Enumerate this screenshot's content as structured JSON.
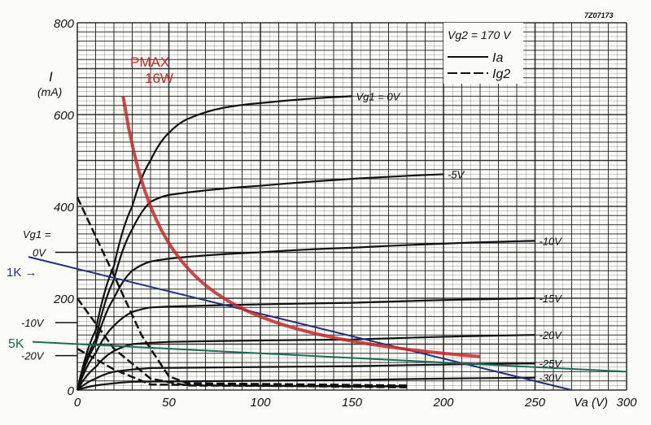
{
  "chart_data": {
    "type": "line",
    "title": "",
    "figure_code": "7Z07173",
    "xlabel": "Va (V)",
    "ylabel": "I (mA)",
    "ylabel_top": "I",
    "ylabel_unit": "(mA)",
    "xlabel_text": "Va (V)",
    "xlim": [
      0,
      300
    ],
    "ylim": [
      0,
      800
    ],
    "xticks": [
      0,
      50,
      100,
      150,
      200,
      250,
      300
    ],
    "yticks": [
      0,
      200,
      400,
      600,
      800
    ],
    "grid": true,
    "legend": {
      "placement": "top-right",
      "condition": "Vg2 = 170 V",
      "entries": [
        {
          "label": "Ia",
          "style": "solid"
        },
        {
          "label": "Ig2",
          "style": "dashed"
        }
      ]
    },
    "series": [
      {
        "name": "Vg1=0V",
        "label": "Vg1 = 0V",
        "points": [
          [
            0,
            0
          ],
          [
            10,
            130
          ],
          [
            20,
            270
          ],
          [
            30,
            400
          ],
          [
            40,
            500
          ],
          [
            50,
            560
          ],
          [
            60,
            590
          ],
          [
            80,
            615
          ],
          [
            100,
            625
          ],
          [
            150,
            640
          ]
        ]
      },
      {
        "name": "-5V",
        "label": "-5V",
        "points": [
          [
            0,
            0
          ],
          [
            10,
            110
          ],
          [
            20,
            240
          ],
          [
            30,
            350
          ],
          [
            40,
            410
          ],
          [
            50,
            425
          ],
          [
            100,
            445
          ],
          [
            200,
            470
          ]
        ]
      },
      {
        "name": "-10V",
        "label": "-10V",
        "points": [
          [
            0,
            0
          ],
          [
            10,
            100
          ],
          [
            20,
            200
          ],
          [
            30,
            260
          ],
          [
            40,
            280
          ],
          [
            60,
            290
          ],
          [
            100,
            300
          ],
          [
            150,
            310
          ],
          [
            250,
            325
          ]
        ]
      },
      {
        "name": "-15V",
        "label": "-15V",
        "points": [
          [
            0,
            0
          ],
          [
            10,
            80
          ],
          [
            20,
            140
          ],
          [
            30,
            170
          ],
          [
            40,
            180
          ],
          [
            60,
            183
          ],
          [
            150,
            190
          ],
          [
            250,
            200
          ]
        ]
      },
      {
        "name": "-20V",
        "label": "-20V",
        "points": [
          [
            0,
            0
          ],
          [
            10,
            50
          ],
          [
            20,
            85
          ],
          [
            30,
            100
          ],
          [
            50,
            105
          ],
          [
            150,
            110
          ],
          [
            250,
            120
          ]
        ]
      },
      {
        "name": "-25V",
        "label": "-25V",
        "points": [
          [
            0,
            0
          ],
          [
            10,
            25
          ],
          [
            20,
            40
          ],
          [
            40,
            48
          ],
          [
            150,
            52
          ],
          [
            250,
            58
          ]
        ]
      },
      {
        "name": "-30V",
        "label": "-30V",
        "points": [
          [
            0,
            0
          ],
          [
            10,
            10
          ],
          [
            30,
            18
          ],
          [
            150,
            22
          ],
          [
            250,
            27
          ]
        ]
      }
    ],
    "ig2_series": [
      {
        "name": "Ig2 Vg1=0V",
        "points": [
          [
            0,
            420
          ],
          [
            20,
            250
          ],
          [
            35,
            120
          ],
          [
            50,
            30
          ],
          [
            60,
            15
          ],
          [
            180,
            10
          ]
        ]
      },
      {
        "name": "Ig2 Vg1=-10V",
        "points": [
          [
            0,
            200
          ],
          [
            20,
            90
          ],
          [
            40,
            25
          ],
          [
            60,
            10
          ],
          [
            180,
            8
          ]
        ]
      },
      {
        "name": "Ig2 Vg1=-20V",
        "points": [
          [
            0,
            90
          ],
          [
            20,
            45
          ],
          [
            40,
            12
          ],
          [
            180,
            6
          ]
        ]
      }
    ],
    "annotations": {
      "pmax": {
        "label_line1": "PMAX",
        "label_line2": "16W",
        "watts": 16,
        "v_range": [
          25,
          220
        ],
        "color": "#c42a2a"
      },
      "load_1k": {
        "label": "1K →",
        "points": [
          [
            0,
            265
          ],
          [
            270,
            0
          ]
        ],
        "color": "#23307a"
      },
      "load_5k": {
        "label": "5K",
        "points": [
          [
            0,
            100
          ],
          [
            300,
            40
          ]
        ],
        "color": "#1d6b57"
      },
      "left_labels": [
        {
          "text": "Vg1 =",
          "y": 340
        },
        {
          "text": "0V",
          "y": 300
        },
        {
          "text": "-10V",
          "y": 147
        },
        {
          "text": "-20V",
          "y": 75
        }
      ]
    }
  }
}
